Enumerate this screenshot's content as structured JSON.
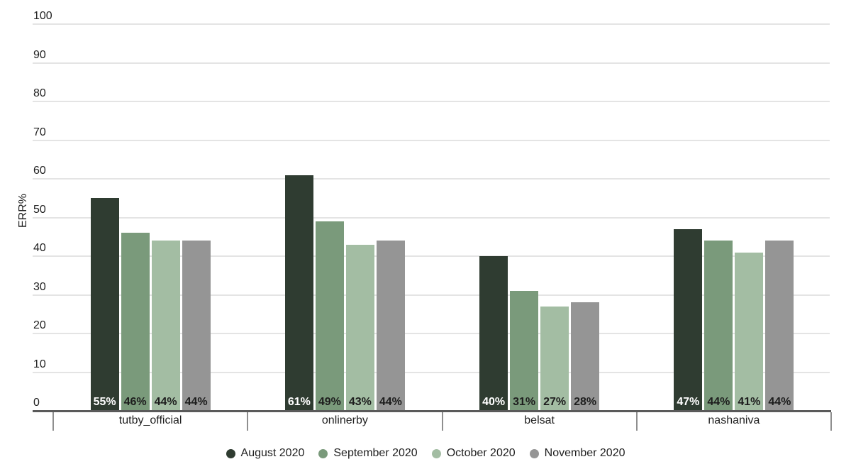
{
  "chart_data": {
    "type": "bar",
    "title": "",
    "xlabel": "",
    "ylabel": "ERR%",
    "categories": [
      "tutby_official",
      "onlinerby",
      "belsat",
      "nashaniva"
    ],
    "series": [
      {
        "name": "August 2020",
        "color": "#2f3c31",
        "label_color": "#ffffff",
        "values": [
          55,
          61,
          40,
          47
        ]
      },
      {
        "name": "September 2020",
        "color": "#7a9a7b",
        "label_color": "#1d1d1d",
        "values": [
          46,
          49,
          31,
          44
        ]
      },
      {
        "name": "October 2020",
        "color": "#a3bda3",
        "label_color": "#1d1d1d",
        "values": [
          44,
          43,
          27,
          41
        ]
      },
      {
        "name": "November 2020",
        "color": "#959595",
        "label_color": "#1d1d1d",
        "values": [
          44,
          44,
          28,
          44
        ]
      }
    ],
    "value_label_suffix": "%",
    "ylim": [
      0,
      100
    ],
    "y_tick_step": 10,
    "y_tick_labels": [
      "0",
      "10",
      "20",
      "30",
      "40",
      "50",
      "60",
      "70",
      "80",
      "90",
      "100"
    ],
    "grid": true,
    "legend_position": "bottom"
  },
  "style": {
    "background": "#ffffff",
    "grid_color": "#e4e4e4",
    "axis_line_color": "#5a5a5a",
    "axis_tick_color": "#8f8f8f",
    "text_color": "#212121"
  }
}
